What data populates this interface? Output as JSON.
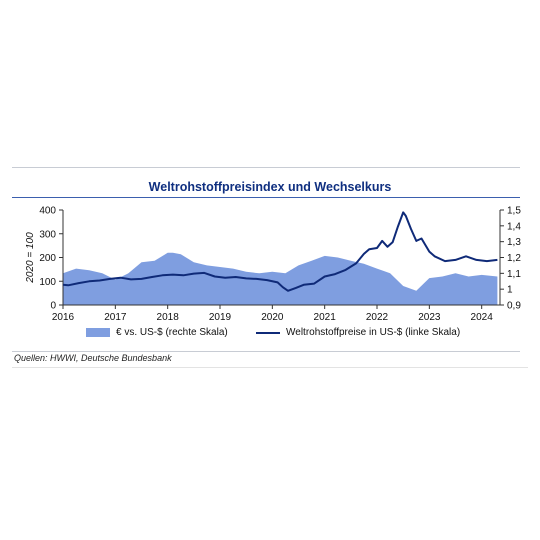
{
  "title": "Weltrohstoffpreisindex und Wechselkurs",
  "source": "Quellen: HWWI, Deutsche Bundesbank",
  "legend": {
    "area_label": "€ vs. US-$ (rechte Skala)",
    "line_label": "Weltrohstoffpreise in US-$ (linke Skala)"
  },
  "colors": {
    "area": "#7f9ee0",
    "line": "#0f2a78",
    "title": "#0f2f80"
  },
  "chart_data": {
    "type": "line",
    "title": "Weltrohstoffpreisindex und Wechselkurs",
    "ylabel": "2020 = 100",
    "ylim": [
      0,
      400
    ],
    "yticks": [
      "0",
      "100",
      "200",
      "300",
      "400"
    ],
    "y2lim": [
      0.9,
      1.5
    ],
    "y2ticks": [
      "0,9",
      "1",
      "1,1",
      "1,2",
      "1,3",
      "1,4",
      "1,5"
    ],
    "xlim": [
      2016.0,
      2024.35
    ],
    "xticks": [
      "2016",
      "2017",
      "2018",
      "2019",
      "2020",
      "2021",
      "2022",
      "2023",
      "2024"
    ],
    "grid": false,
    "legend_position": "bottom",
    "series": [
      {
        "name": "€ vs. US-$ (rechte Skala)",
        "kind": "area",
        "axis": "right",
        "x": [
          2016.0,
          2016.25,
          2016.5,
          2016.75,
          2017.0,
          2017.25,
          2017.5,
          2017.75,
          2018.0,
          2018.1,
          2018.25,
          2018.5,
          2018.75,
          2019.0,
          2019.25,
          2019.5,
          2019.75,
          2020.0,
          2020.25,
          2020.5,
          2020.75,
          2021.0,
          2021.25,
          2021.5,
          2021.75,
          2022.0,
          2022.25,
          2022.5,
          2022.75,
          2023.0,
          2023.25,
          2023.5,
          2023.75,
          2024.0,
          2024.3
        ],
        "y": [
          1.1,
          1.13,
          1.12,
          1.1,
          1.06,
          1.1,
          1.17,
          1.18,
          1.23,
          1.23,
          1.22,
          1.17,
          1.15,
          1.14,
          1.13,
          1.11,
          1.1,
          1.11,
          1.1,
          1.15,
          1.18,
          1.21,
          1.2,
          1.18,
          1.16,
          1.13,
          1.1,
          1.02,
          0.99,
          1.07,
          1.08,
          1.1,
          1.08,
          1.09,
          1.08
        ]
      },
      {
        "name": "Weltrohstoffpreise in US-$ (linke Skala)",
        "kind": "line",
        "axis": "left",
        "x": [
          2016.0,
          2016.1,
          2016.3,
          2016.5,
          2016.7,
          2016.9,
          2017.1,
          2017.3,
          2017.5,
          2017.7,
          2017.9,
          2018.1,
          2018.3,
          2018.5,
          2018.7,
          2018.9,
          2019.1,
          2019.3,
          2019.5,
          2019.7,
          2019.9,
          2020.1,
          2020.2,
          2020.3,
          2020.45,
          2020.6,
          2020.8,
          2021.0,
          2021.2,
          2021.4,
          2021.6,
          2021.75,
          2021.85,
          2022.0,
          2022.1,
          2022.2,
          2022.3,
          2022.4,
          2022.5,
          2022.55,
          2022.65,
          2022.75,
          2022.85,
          2023.0,
          2023.1,
          2023.3,
          2023.5,
          2023.7,
          2023.9,
          2024.1,
          2024.3
        ],
        "y": [
          85,
          83,
          92,
          100,
          103,
          110,
          115,
          108,
          110,
          118,
          125,
          128,
          125,
          132,
          135,
          120,
          115,
          118,
          112,
          110,
          105,
          95,
          75,
          60,
          72,
          85,
          90,
          120,
          130,
          148,
          175,
          215,
          235,
          240,
          270,
          245,
          265,
          330,
          390,
          375,
          320,
          270,
          280,
          225,
          205,
          185,
          190,
          205,
          190,
          185,
          190
        ]
      }
    ]
  }
}
